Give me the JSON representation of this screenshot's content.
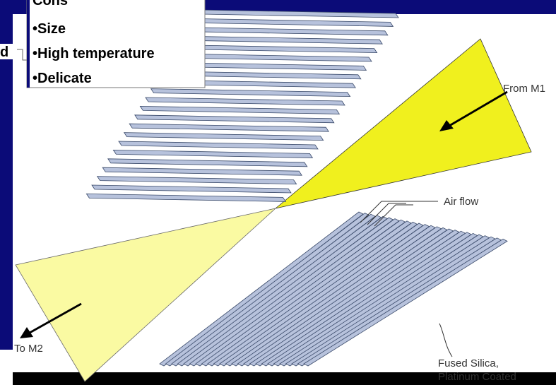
{
  "callout": {
    "title": "Cons",
    "items": [
      "•Size",
      "•High temperature",
      "•Delicate"
    ]
  },
  "fragment": "d",
  "labels": {
    "from": "From M1",
    "air": "Air flow",
    "to": "To M2",
    "material": [
      "Fused Silica,",
      "Platinum Coated"
    ]
  }
}
